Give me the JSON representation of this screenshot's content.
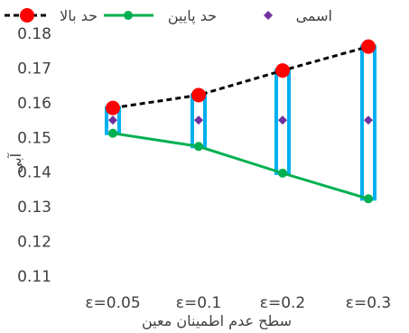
{
  "chart_data": {
    "type": "line",
    "title": "",
    "xlabel": "سطح عدم اطمینان معین",
    "ylabel": "آبی‌",
    "categories": [
      "ε=0.05",
      "ε=0.1",
      "ε=0.2",
      "ε=0.3"
    ],
    "ylim": [
      0.11,
      0.18
    ],
    "yticks": [
      "0.11",
      "0.12",
      "0.13",
      "0.14",
      "0.15",
      "0.16",
      "0.17",
      "0.18"
    ],
    "grid": false,
    "legend_position": "top",
    "series": [
      {
        "name": "حد بالا",
        "values": [
          0.1585,
          0.1622,
          0.1693,
          0.1762
        ],
        "color": "#000000",
        "marker_color": "#ff0000",
        "line": "dashed"
      },
      {
        "name": "حد پایین",
        "values": [
          0.1512,
          0.1474,
          0.1397,
          0.1323
        ],
        "color": "#00b050",
        "marker_color": "#00b050",
        "line": "solid"
      },
      {
        "name": "اسمی",
        "values": [
          0.155,
          0.155,
          0.155,
          0.155
        ],
        "color": "#7030a0",
        "marker": "diamond"
      }
    ],
    "range_bar_color": "#00b0f0"
  }
}
